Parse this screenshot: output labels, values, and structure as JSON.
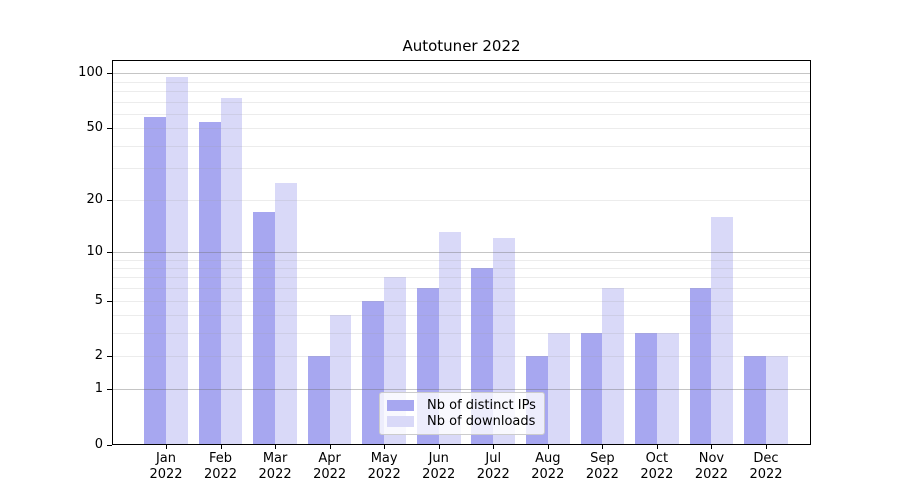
{
  "chart_data": {
    "type": "bar",
    "title": "Autotuner 2022",
    "categories": [
      "Jan",
      "Feb",
      "Mar",
      "Apr",
      "May",
      "Jun",
      "Jul",
      "Aug",
      "Sep",
      "Oct",
      "Nov",
      "Dec"
    ],
    "category_year": "2022",
    "series": [
      {
        "name": "Nb of distinct IPs",
        "color": "#a7a7f0",
        "values": [
          58,
          54,
          17,
          2,
          5,
          6,
          8,
          2,
          3,
          3,
          6,
          2
        ]
      },
      {
        "name": "Nb of downloads",
        "color": "#d9d9f8",
        "values": [
          95,
          73,
          25,
          4,
          7,
          13,
          12,
          3,
          6,
          3,
          16,
          2
        ]
      }
    ],
    "yscale": "log1p",
    "ylim": [
      0,
      118
    ],
    "yticks": [
      0,
      1,
      2,
      5,
      10,
      20,
      50,
      100
    ],
    "major_gridlines": [
      1,
      10,
      100
    ],
    "minor_gridlines": [
      2,
      3,
      4,
      5,
      6,
      7,
      8,
      9,
      20,
      30,
      40,
      50,
      60,
      70,
      80,
      90
    ],
    "grid": "horizontal",
    "legend_position": "lower-center",
    "colors": {
      "axis": "#000000",
      "major_grid": "#c8c8c8",
      "minor_grid": "#ececec",
      "background": "#ffffff"
    }
  }
}
